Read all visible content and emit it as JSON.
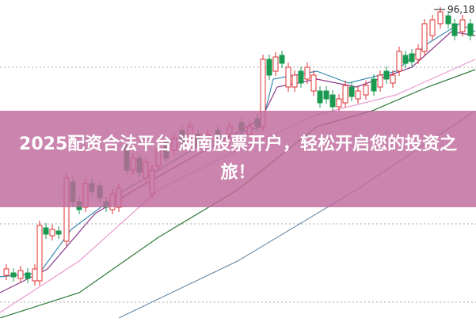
{
  "banner": {
    "text": "2025配资合法平台 湖南股票开户，轻松开启您的投资之旅！"
  },
  "price_label": "96,18"
}
